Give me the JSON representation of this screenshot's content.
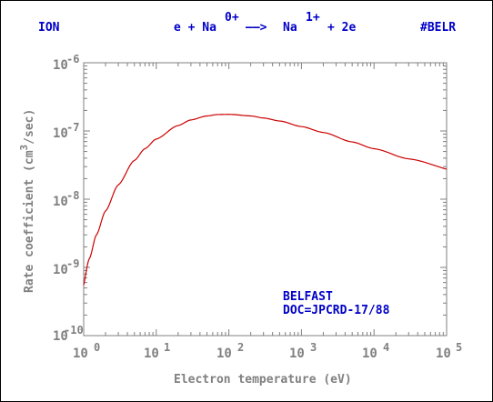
{
  "header": {
    "left": "ION",
    "reaction": {
      "part1": "e + Na",
      "sup1": "0+",
      "arrow": "——>",
      "part2": "Na",
      "sup2": "1+",
      "part3": "+ 2e"
    },
    "right": "#BELR"
  },
  "colors": {
    "header_text": "#0000c8",
    "axis_text": "#808080",
    "curve": "#cc0000",
    "annotation": "#0000c8"
  },
  "annotation": {
    "line1": "BELFAST",
    "line2": "DOC=JPCRD-17/88"
  },
  "chart_data": {
    "type": "line",
    "title": "",
    "xlabel": "Electron temperature (eV)",
    "ylabel": {
      "pre": "Rate coefficient (cm",
      "sup": "3",
      "post": "/sec)"
    },
    "xscale": "log",
    "yscale": "log",
    "xlim": [
      1,
      100000
    ],
    "ylim": [
      1e-10,
      1e-06
    ],
    "x_ticks": [
      {
        "base": "10",
        "exp": "0",
        "value": 1
      },
      {
        "base": "10",
        "exp": "1",
        "value": 10
      },
      {
        "base": "10",
        "exp": "2",
        "value": 100
      },
      {
        "base": "10",
        "exp": "3",
        "value": 1000
      },
      {
        "base": "10",
        "exp": "4",
        "value": 10000
      },
      {
        "base": "10",
        "exp": "5",
        "value": 100000
      }
    ],
    "y_ticks": [
      {
        "base": "10",
        "exp": "-10",
        "value": 1e-10
      },
      {
        "base": "10",
        "exp": "-9",
        "value": 1e-09
      },
      {
        "base": "10",
        "exp": "-8",
        "value": 1e-08
      },
      {
        "base": "10",
        "exp": "-7",
        "value": 1e-07
      },
      {
        "base": "10",
        "exp": "-6",
        "value": 1e-06
      }
    ],
    "grid": false,
    "legend": "none",
    "series": [
      {
        "x": [
          1,
          1.2,
          1.5,
          2,
          3,
          5,
          7,
          10,
          20,
          30,
          50,
          70,
          100,
          200,
          300,
          500,
          1000,
          2000,
          5000,
          10000,
          30000,
          100000
        ],
        "y": [
          5.5e-10,
          1.35e-09,
          3e-09,
          6.7e-09,
          1.62e-08,
          3.7e-08,
          5.5e-08,
          7.6e-08,
          1.2e-07,
          1.45e-07,
          1.66e-07,
          1.74e-07,
          1.75e-07,
          1.66e-07,
          1.55e-07,
          1.4e-07,
          1.16e-07,
          9.5e-08,
          6.9e-08,
          5.5e-08,
          3.9e-08,
          2.75e-08
        ]
      }
    ]
  }
}
